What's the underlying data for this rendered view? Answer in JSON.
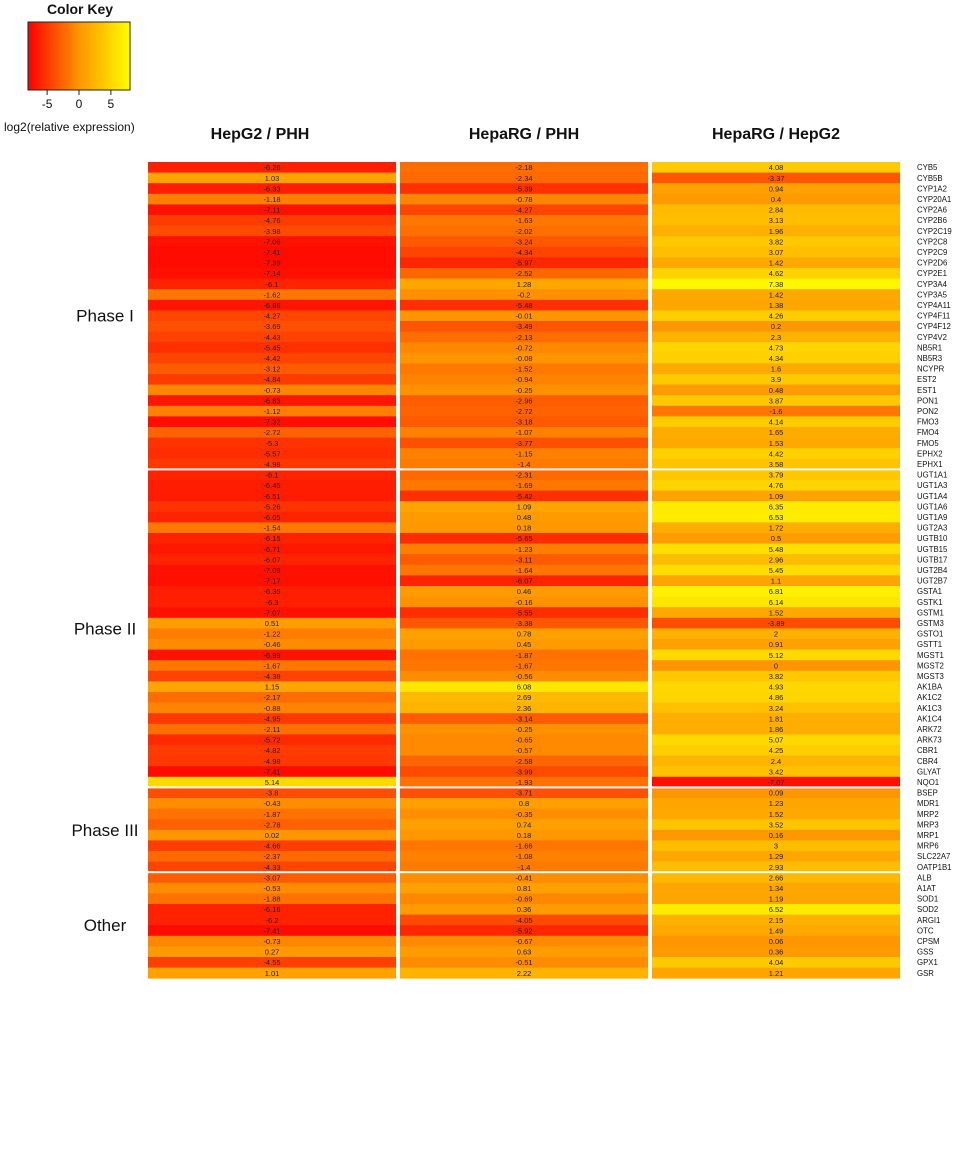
{
  "chart_data": {
    "type": "heatmap",
    "color_key": {
      "title": "Color Key",
      "label": "log2(relative expression)",
      "ticks": [
        -5,
        0,
        5
      ],
      "range": [
        -8,
        8
      ],
      "colors": {
        "low": "#ff0000",
        "mid": "#ff9500",
        "high": "#ffff00"
      }
    },
    "columns": [
      "HepG2 / PHH",
      "HepaRG / PHH",
      "HepaRG / HepG2"
    ],
    "groups": [
      {
        "name": "Phase I",
        "rows": [
          "CYB5",
          "CYB5B",
          "CYP1A2",
          "CYP20A1",
          "CYP2A6",
          "CYP2B6",
          "CYP2C19",
          "CYP2C8",
          "CYP2C9",
          "CYP2D6",
          "CYP2E1",
          "CYP3A4",
          "CYP3A5",
          "CYP4A11",
          "CYP4F11",
          "CYP4F12",
          "CYP4V2",
          "NB5R1",
          "NB5R3",
          "NCYPR",
          "EST2",
          "EST1",
          "PON1",
          "PON2",
          "FMO3",
          "FMO4",
          "FMO5",
          "EPHX2",
          "EPHX1"
        ]
      },
      {
        "name": "Phase II",
        "rows": [
          "UGT1A1",
          "UGT1A3",
          "UGT1A4",
          "UGT1A6",
          "UGT1A9",
          "UGT2A3",
          "UGTB10",
          "UGTB15",
          "UGTB17",
          "UGT2B4",
          "UGT2B7",
          "GSTA1",
          "GSTK1",
          "GSTM1",
          "GSTM3",
          "GSTO1",
          "GSTT1",
          "MGST1",
          "MGST2",
          "MGST3",
          "AK1BA",
          "AK1C2",
          "AK1C3",
          "AK1C4",
          "ARK72",
          "ARK73",
          "CBR1",
          "CBR4",
          "GLYAT",
          "NQO1"
        ]
      },
      {
        "name": "Phase III",
        "rows": [
          "BSEP",
          "MDR1",
          "MRP2",
          "MRP3",
          "MRP1",
          "MRP6",
          "SLC22A7",
          "OATP1B1"
        ]
      },
      {
        "name": "Other",
        "rows": [
          "ALB",
          "A1AT",
          "SOD1",
          "SOD2",
          "ARGI1",
          "OTC",
          "CPSM",
          "GSS",
          "GPX1",
          "GSR"
        ]
      }
    ],
    "values": [
      [
        "-6.26",
        "-2.18",
        "4.08"
      ],
      [
        "1.03",
        "-2.34",
        "-3.37"
      ],
      [
        "-6.33",
        "-5.39",
        "0.94"
      ],
      [
        "-1.18",
        "-0.78",
        "0.4"
      ],
      [
        "-7.11",
        "-4.27",
        "2.84"
      ],
      [
        "-4.76",
        "-1.63",
        "3.13"
      ],
      [
        "-3.98",
        "-2.02",
        "1.96"
      ],
      [
        "-7.06",
        "-3.24",
        "3.82"
      ],
      [
        "-7.41",
        "-4.34",
        "3.07"
      ],
      [
        "-7.39",
        "-5.97",
        "1.42"
      ],
      [
        "-7.14",
        "-2.52",
        "4.62"
      ],
      [
        "-6.1",
        "1.28",
        "7.38"
      ],
      [
        "-1.62",
        "-0.2",
        "1.42"
      ],
      [
        "-6.86",
        "-5.48",
        "1.38"
      ],
      [
        "-4.27",
        "-0.01",
        "4.26"
      ],
      [
        "-3.69",
        "-3.49",
        "0.2"
      ],
      [
        "-4.43",
        "-2.13",
        "2.3"
      ],
      [
        "-5.45",
        "-0.72",
        "4.73"
      ],
      [
        "-4.42",
        "-0.08",
        "4.34"
      ],
      [
        "-3.12",
        "-1.52",
        "1.6"
      ],
      [
        "-4.84",
        "-0.94",
        "3.9"
      ],
      [
        "-0.73",
        "-0.25",
        "0.48"
      ],
      [
        "-6.83",
        "-2.96",
        "3.87"
      ],
      [
        "-1.12",
        "-2.72",
        "-1.6"
      ],
      [
        "-7.32",
        "-3.18",
        "4.14"
      ],
      [
        "-2.72",
        "-1.07",
        "1.65"
      ],
      [
        "-5.3",
        "-3.77",
        "1.53"
      ],
      [
        "-5.57",
        "-1.15",
        "4.42"
      ],
      [
        "-4.98",
        "-1.4",
        "3.58"
      ],
      [
        "-6.1",
        "-2.31",
        "3.79"
      ],
      [
        "-6.45",
        "-1.69",
        "4.76"
      ],
      [
        "-6.51",
        "-5.42",
        "1.09"
      ],
      [
        "-5.26",
        "1.09",
        "6.35"
      ],
      [
        "-6.05",
        "0.48",
        "6.53"
      ],
      [
        "-1.54",
        "0.18",
        "1.72"
      ],
      [
        "-6.15",
        "-5.65",
        "0.5"
      ],
      [
        "-6.71",
        "-1.23",
        "5.48"
      ],
      [
        "-6.07",
        "-3.11",
        "2.96"
      ],
      [
        "-7.09",
        "-1.64",
        "5.45"
      ],
      [
        "-7.17",
        "-6.07",
        "1.1"
      ],
      [
        "-6.35",
        "0.46",
        "6.81"
      ],
      [
        "-6.3",
        "-0.16",
        "6.14"
      ],
      [
        "-7.07",
        "-5.55",
        "1.52"
      ],
      [
        "0.51",
        "-3.38",
        "-3.89"
      ],
      [
        "-1.22",
        "0.78",
        "2"
      ],
      [
        "-0.46",
        "0.45",
        "0.91"
      ],
      [
        "-6.99",
        "-1.87",
        "5.12"
      ],
      [
        "-1.67",
        "-1.67",
        "0"
      ],
      [
        "-4.38",
        "-0.56",
        "3.82"
      ],
      [
        "1.15",
        "6.08",
        "4.93"
      ],
      [
        "-2.17",
        "2.69",
        "4.86"
      ],
      [
        "-0.88",
        "2.36",
        "3.24"
      ],
      [
        "-4.95",
        "-3.14",
        "1.81"
      ],
      [
        "-2.11",
        "-0.25",
        "1.86"
      ],
      [
        "-5.72",
        "-0.65",
        "5.07"
      ],
      [
        "-4.82",
        "-0.57",
        "4.25"
      ],
      [
        "-4.98",
        "-2.58",
        "2.4"
      ],
      [
        "-7.41",
        "-3.99",
        "3.42"
      ],
      [
        "5.14",
        "-1.93",
        "-7.07"
      ],
      [
        "-3.8",
        "-3.71",
        "0.09"
      ],
      [
        "-0.43",
        "0.8",
        "1.23"
      ],
      [
        "-1.87",
        "-0.35",
        "1.52"
      ],
      [
        "-2.78",
        "0.74",
        "3.52"
      ],
      [
        "0.02",
        "0.18",
        "0.16"
      ],
      [
        "-4.66",
        "-1.66",
        "3"
      ],
      [
        "-2.37",
        "-1.08",
        "1.29"
      ],
      [
        "-4.33",
        "-1.4",
        "2.93"
      ],
      [
        "-3.07",
        "-0.41",
        "2.66"
      ],
      [
        "-0.53",
        "0.81",
        "1.34"
      ],
      [
        "-1.88",
        "-0.69",
        "1.19"
      ],
      [
        "-6.16",
        "0.36",
        "6.52"
      ],
      [
        "-6.2",
        "-4.05",
        "2.15"
      ],
      [
        "-7.41",
        "-5.92",
        "1.49"
      ],
      [
        "-0.73",
        "-0.67",
        "0.06"
      ],
      [
        "0.27",
        "0.63",
        "0.36"
      ],
      [
        "-4.55",
        "-0.51",
        "4.04"
      ],
      [
        "1.01",
        "2.22",
        "1.21"
      ]
    ]
  }
}
